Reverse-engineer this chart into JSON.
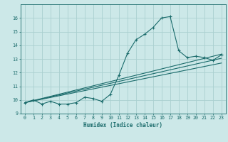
{
  "xlabel": "Humidex (Indice chaleur)",
  "xlim": [
    -0.5,
    23.5
  ],
  "ylim": [
    9,
    17
  ],
  "yticks": [
    9,
    10,
    11,
    12,
    13,
    14,
    15,
    16
  ],
  "xticks": [
    0,
    1,
    2,
    3,
    4,
    5,
    6,
    7,
    8,
    9,
    10,
    11,
    12,
    13,
    14,
    15,
    16,
    17,
    18,
    19,
    20,
    21,
    22,
    23
  ],
  "bg_color": "#cce8e8",
  "grid_color": "#aad0d0",
  "line_color": "#1a6b6b",
  "curve1_x": [
    0,
    1,
    2,
    3,
    4,
    5,
    6,
    7,
    8,
    9,
    10,
    11,
    12,
    13,
    14,
    15,
    16,
    17,
    18,
    19,
    20,
    21,
    22,
    23
  ],
  "curve1_y": [
    9.8,
    10.0,
    9.7,
    9.9,
    9.7,
    9.7,
    9.8,
    10.2,
    10.1,
    9.9,
    10.4,
    11.8,
    13.4,
    14.4,
    14.8,
    15.3,
    16.0,
    16.1,
    13.6,
    13.1,
    13.2,
    13.1,
    12.9,
    13.3
  ],
  "line1_end_y": 13.35,
  "line2_end_y": 13.05,
  "line3_end_y": 12.7,
  "lines_start_y": 9.8,
  "lines_start_x": 0,
  "lines_end_x": 23
}
